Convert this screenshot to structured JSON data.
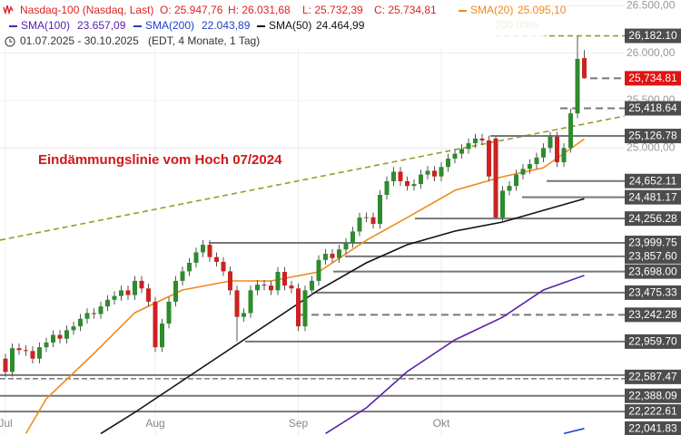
{
  "chart_data": {
    "type": "candlestick",
    "header": {
      "symbol": "Nasdaq-100 (Nasdaq, Last)",
      "ohlc": [
        "O: 25.947,76",
        "H: 26.031,68",
        "L: 25.732,39",
        "C: 25.734,81"
      ],
      "dates": "01.07.2025 - 30.10.2025",
      "period": "(EDT, 4 Monate, 1 Tag)"
    },
    "annotation": "Eindämmungslinie vom Hoch 07/2024",
    "fib_label": "200.00%",
    "grid": true,
    "colors": {
      "up": "#2e8b2e",
      "down": "#cc2222",
      "wick": "#555555",
      "level": "#777777",
      "fib": "#9a9a28",
      "label_box": "#4d4d4d",
      "current_box": "#e01414"
    },
    "ylim": [
      21975,
      26560
    ],
    "yticks": [
      {
        "value": 25000,
        "label": "25.000,00"
      },
      {
        "value": 25500,
        "label": "25.500,00"
      },
      {
        "value": 26000,
        "label": "26.000,00"
      },
      {
        "value": 26500,
        "label": "26.500,00"
      }
    ],
    "xticks": [
      {
        "value": 0,
        "label": "Jul"
      },
      {
        "value": 22,
        "label": "Aug"
      },
      {
        "value": 43,
        "label": "Sep"
      },
      {
        "value": 64,
        "label": "Okt"
      }
    ],
    "open": [
      22780,
      22640,
      22890,
      22870,
      22860,
      22780,
      22900,
      22950,
      23030,
      22990,
      23080,
      23120,
      23200,
      23260,
      23250,
      23330,
      23400,
      23440,
      23500,
      23450,
      23600,
      23520,
      23380,
      22900,
      23150,
      23380,
      23600,
      23700,
      23790,
      23900,
      23980,
      23850,
      23800,
      23700,
      23500,
      23220,
      23260,
      23500,
      23560,
      23550,
      23500,
      23694,
      23550,
      23520,
      23120,
      23500,
      23600,
      23820,
      23885,
      23840,
      23930,
      24000,
      24120,
      24267,
      24270,
      24200,
      24506,
      24650,
      24750,
      24650,
      24600,
      24620,
      24720,
      24760,
      24700,
      24800,
      24888,
      24940,
      24990,
      25050,
      25100,
      25080,
      25100,
      24267,
      24550,
      24600,
      24720,
      24780,
      24830,
      24900,
      25000,
      25120,
      24850,
      25000,
      25365,
      25947.76
    ],
    "high": [
      22830,
      22940,
      22940,
      22920,
      22910,
      22950,
      23000,
      23080,
      23080,
      23130,
      23170,
      23250,
      23310,
      23310,
      23380,
      23450,
      23490,
      23550,
      23550,
      23650,
      23650,
      23570,
      23430,
      23200,
      23430,
      23650,
      23750,
      23840,
      23950,
      24030,
      24030,
      23900,
      23850,
      23750,
      23550,
      23310,
      23550,
      23610,
      23610,
      23600,
      23744,
      23744,
      23600,
      23570,
      23550,
      23650,
      23870,
      23935,
      23935,
      23980,
      24050,
      24170,
      24317,
      24320,
      24320,
      24556,
      24700,
      24800,
      24800,
      24700,
      24670,
      24770,
      24810,
      24810,
      24850,
      24938,
      24990,
      25040,
      25100,
      25150,
      25150,
      25130,
      25126.78,
      24600,
      24650,
      24770,
      24830,
      24880,
      24950,
      25050,
      25170,
      25170,
      25050,
      25415,
      26182.1,
      26031.68
    ],
    "low": [
      22590,
      22590,
      22820,
      22810,
      22730,
      22730,
      22850,
      22900,
      22940,
      22940,
      23030,
      23070,
      23150,
      23200,
      23200,
      23280,
      23350,
      23390,
      23400,
      23400,
      23470,
      23330,
      22850,
      22850,
      23100,
      23330,
      23550,
      23650,
      23740,
      23850,
      23800,
      23750,
      23650,
      23450,
      22959.7,
      23170,
      23210,
      23450,
      23500,
      23450,
      23450,
      23500,
      23470,
      23070,
      23070,
      23450,
      23550,
      23770,
      23790,
      23790,
      23880,
      23950,
      24070,
      24217,
      24150,
      24150,
      24456,
      24600,
      24600,
      24550,
      24550,
      24570,
      24670,
      24650,
      24650,
      24750,
      24838,
      24890,
      24940,
      25000,
      25030,
      24650,
      24256.28,
      24217,
      24500,
      24550,
      24670,
      24730,
      24780,
      24850,
      24950,
      24800,
      24800,
      24950,
      25315,
      25732.39
    ],
    "close": [
      22640,
      22890,
      22870,
      22860,
      22780,
      22900,
      22950,
      23030,
      22990,
      23080,
      23120,
      23200,
      23260,
      23250,
      23330,
      23400,
      23440,
      23500,
      23450,
      23600,
      23520,
      23380,
      22900,
      23150,
      23380,
      23600,
      23700,
      23790,
      23900,
      23980,
      23850,
      23800,
      23700,
      23500,
      23220,
      23260,
      23500,
      23560,
      23550,
      23500,
      23694,
      23550,
      23520,
      23120,
      23500,
      23600,
      23820,
      23885,
      23840,
      23930,
      24000,
      24120,
      24267,
      24270,
      24200,
      24506,
      24650,
      24750,
      24650,
      24600,
      24620,
      24720,
      24760,
      24700,
      24800,
      24888,
      24940,
      24990,
      25050,
      25100,
      25080,
      24700,
      24267,
      24550,
      24600,
      24720,
      24780,
      24830,
      24900,
      25000,
      25120,
      24850,
      25000,
      25365,
      25940,
      25734.81
    ],
    "series": [
      {
        "name": "SMA(20)",
        "legend_value": "25.095,10",
        "color": "#f08a1e",
        "x": [
          3,
          6,
          13,
          19,
          26,
          33,
          39,
          46,
          53,
          59,
          66,
          73,
          79,
          85
        ],
        "values": [
          21990,
          22357,
          22835,
          23264,
          23503,
          23599,
          23599,
          23694,
          24028,
          24267,
          24554,
          24697,
          24792,
          25095.1
        ]
      },
      {
        "name": "SMA(100)",
        "legend_value": "23.657,09",
        "color": "#5a22a8",
        "x": [
          47,
          53,
          59,
          66,
          73,
          79,
          85
        ],
        "values": [
          21990,
          22262,
          22644,
          22978,
          23216,
          23503,
          23657.09
        ]
      },
      {
        "name": "SMA(200)",
        "legend_value": "22.043,89",
        "color": "#1f3fc8",
        "x": [
          82,
          85
        ],
        "values": [
          21990,
          22043.89
        ]
      },
      {
        "name": "SMA(50)",
        "legend_value": "24.464,99",
        "color": "#111111",
        "x": [
          14,
          19,
          26,
          33,
          39,
          46,
          53,
          59,
          66,
          73,
          79,
          85
        ],
        "values": [
          21990,
          22214,
          22548,
          22882,
          23169,
          23503,
          23790,
          23981,
          24124,
          24220,
          24343,
          24464.99
        ]
      }
    ],
    "trendline": {
      "x": [
        -0.8,
        90.9
      ],
      "values": [
        24029,
        25337
      ]
    },
    "levels": [
      {
        "value": 26182.1,
        "label": "26,182.10",
        "style": "fib"
      },
      {
        "value": 25734.81,
        "label": "25,734.81",
        "style": "current"
      },
      {
        "value": 25418.64,
        "label": "25,418.64",
        "style": "dashed"
      },
      {
        "value": 25126.78,
        "label": "25,126.78",
        "style": "solid"
      },
      {
        "value": 24652.11,
        "label": "24,652.11",
        "style": "solid"
      },
      {
        "value": 24481.17,
        "label": "24,481.17",
        "style": "solid"
      },
      {
        "value": 24256.28,
        "label": "24,256.28",
        "style": "solid"
      },
      {
        "value": 23999.75,
        "label": "23,999.75",
        "style": "solid"
      },
      {
        "value": 23857.6,
        "label": "23,857.60",
        "style": "solid"
      },
      {
        "value": 23698,
        "label": "23,698.00",
        "style": "solid"
      },
      {
        "value": 23475.33,
        "label": "23,475.33",
        "style": "solid"
      },
      {
        "value": 23242.28,
        "label": "23,242.28",
        "style": "dashed"
      },
      {
        "value": 22959.7,
        "label": "22,959.70",
        "style": "solid"
      },
      {
        "value": 22587.47,
        "label": "22,587.47",
        "style": "double"
      },
      {
        "value": 22388.09,
        "label": "22,388.09",
        "style": "solid"
      },
      {
        "value": 22222.61,
        "label": "22,222.61",
        "style": "solid"
      },
      {
        "value": 22041.83,
        "label": "22,041.83",
        "style": "label"
      }
    ]
  }
}
